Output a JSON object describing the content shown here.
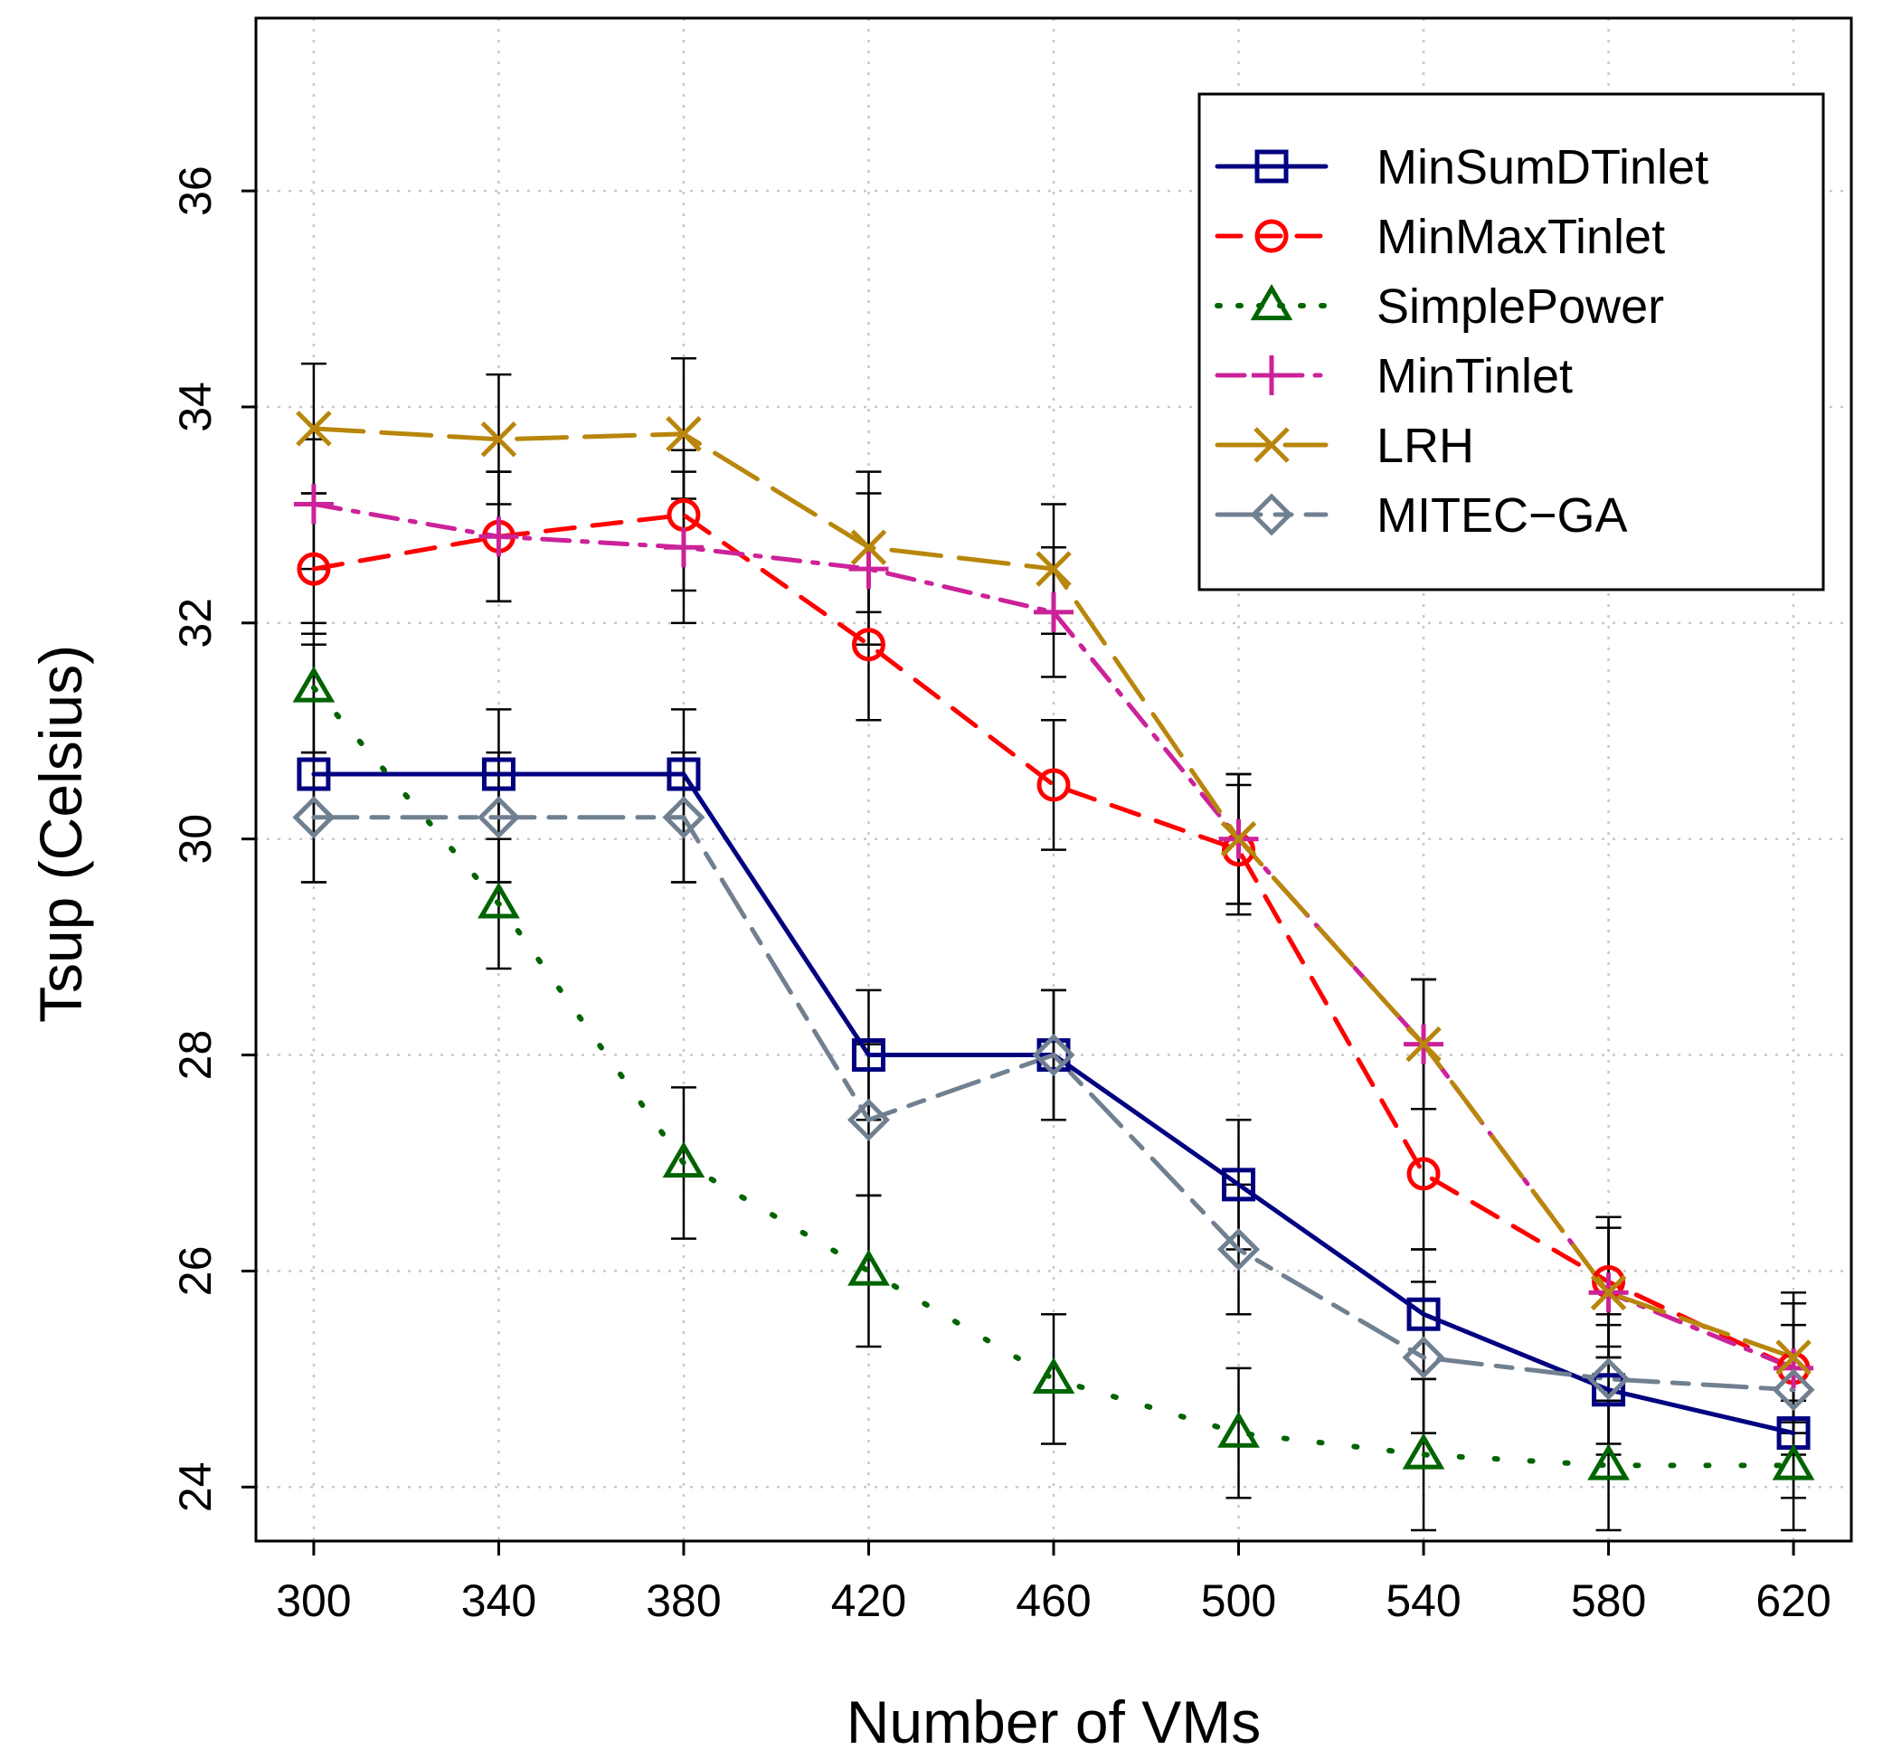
{
  "chart_data": {
    "type": "line",
    "title": "",
    "xlabel": "Number of VMs",
    "ylabel": "Tsup (Celsius)",
    "x": [
      300,
      340,
      380,
      420,
      460,
      500,
      540,
      580,
      620
    ],
    "xticks": [
      "300",
      "340",
      "380",
      "420",
      "460",
      "500",
      "540",
      "580",
      "620"
    ],
    "yticks": [
      "24",
      "26",
      "28",
      "30",
      "32",
      "34",
      "36"
    ],
    "xlim": [
      287.5,
      632.5
    ],
    "ylim": [
      23.5,
      37.6
    ],
    "grid": true,
    "legend_position": "top-right",
    "series": [
      {
        "name": "MinSumDTinlet",
        "color": "#000080",
        "marker": "square",
        "dash": "solid",
        "values": [
          30.6,
          30.6,
          30.6,
          28.0,
          28.0,
          26.8,
          25.6,
          24.9,
          24.5
        ],
        "err_low": [
          29.6,
          29.6,
          29.6,
          27.4,
          27.4,
          26.2,
          25.0,
          24.3,
          23.9
        ],
        "err_high": [
          31.8,
          31.2,
          31.2,
          28.6,
          28.6,
          27.4,
          26.2,
          25.5,
          25.1
        ]
      },
      {
        "name": "MinMaxTinlet",
        "color": "#ff0000",
        "marker": "circle",
        "dash": "dashed",
        "values": [
          32.5,
          32.8,
          33.0,
          31.8,
          30.5,
          29.9,
          26.9,
          25.9,
          25.1
        ],
        "err_low": [
          31.9,
          32.2,
          32.3,
          31.1,
          29.9,
          29.3,
          26.2,
          25.3,
          24.5
        ],
        "err_high": [
          33.2,
          33.4,
          33.6,
          32.5,
          31.1,
          30.5,
          27.5,
          26.5,
          25.7
        ]
      },
      {
        "name": "SimplePower",
        "color": "#006400",
        "marker": "triangle",
        "dash": "dotted",
        "values": [
          31.4,
          29.4,
          27.0,
          26.0,
          25.0,
          24.5,
          24.3,
          24.2,
          24.2
        ],
        "err_low": [
          30.8,
          28.8,
          26.3,
          25.3,
          24.4,
          23.9,
          23.6,
          23.6,
          23.6
        ],
        "err_high": [
          32.0,
          30.0,
          27.7,
          26.7,
          25.6,
          25.1,
          25.0,
          24.8,
          24.8
        ]
      },
      {
        "name": "MinTinlet",
        "color": "#cc2299",
        "marker": "plus",
        "dash": "dashdot",
        "values": [
          33.1,
          32.8,
          32.7,
          32.5,
          32.1,
          30.0,
          28.1,
          25.8,
          25.1
        ],
        "err_low": [
          32.5,
          32.2,
          32.0,
          31.8,
          31.5,
          29.4,
          27.5,
          25.2,
          24.5
        ],
        "err_high": [
          33.7,
          33.4,
          33.4,
          33.2,
          32.7,
          30.6,
          28.7,
          26.4,
          25.7
        ]
      },
      {
        "name": "LRH",
        "color": "#b8860b",
        "marker": "cross",
        "dash": "longdash",
        "values": [
          33.8,
          33.7,
          33.75,
          32.7,
          32.5,
          30.0,
          28.1,
          25.8,
          25.2
        ],
        "err_low": [
          33.2,
          33.1,
          33.15,
          32.1,
          31.9,
          29.4,
          27.5,
          25.2,
          24.6
        ],
        "err_high": [
          34.4,
          34.3,
          34.45,
          33.4,
          33.1,
          30.6,
          28.7,
          26.5,
          25.8
        ]
      },
      {
        "name": "MITEC−GA",
        "color": "#708090",
        "marker": "diamond",
        "dash": "twodash",
        "values": [
          30.2,
          30.2,
          30.2,
          27.4,
          28.0,
          26.2,
          25.2,
          25.0,
          24.9
        ],
        "err_low": [
          29.6,
          29.6,
          29.6,
          26.7,
          27.4,
          25.6,
          24.5,
          24.4,
          24.3
        ],
        "err_high": [
          30.8,
          30.8,
          30.8,
          28.1,
          28.6,
          26.8,
          25.9,
          25.6,
          25.5
        ]
      }
    ]
  }
}
